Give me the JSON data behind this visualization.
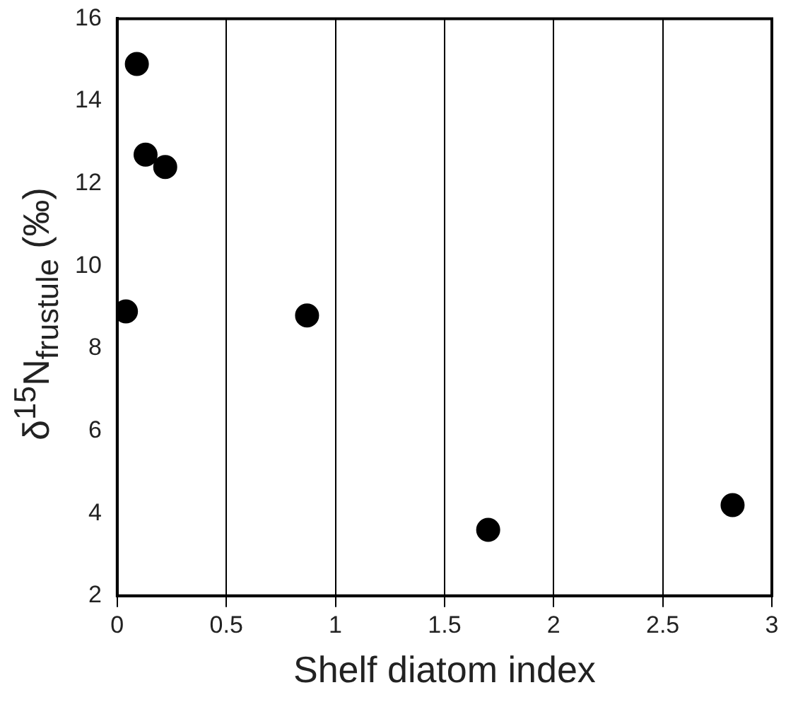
{
  "chart_data": {
    "type": "scatter",
    "xlabel": "Shelf diatom index",
    "ylabel": "δ$^{15}$N$_{frustule}$ (‰)",
    "x": [
      0.09,
      0.13,
      0.22,
      0.04,
      0.87,
      1.7,
      2.82
    ],
    "series": [
      {
        "color": "#000000",
        "values": [
          14.9,
          12.7,
          12.4,
          8.9,
          8.8,
          3.6,
          4.2
        ]
      }
    ],
    "xlim": [
      0,
      3
    ],
    "xticks": [
      0,
      0.5,
      1,
      1.5,
      2,
      2.5,
      3
    ],
    "ylim": [
      2,
      16
    ],
    "yticks": [
      2,
      4,
      6,
      8,
      10,
      12,
      14,
      16
    ],
    "grid": "x",
    "marker": "circle",
    "legend": false
  }
}
